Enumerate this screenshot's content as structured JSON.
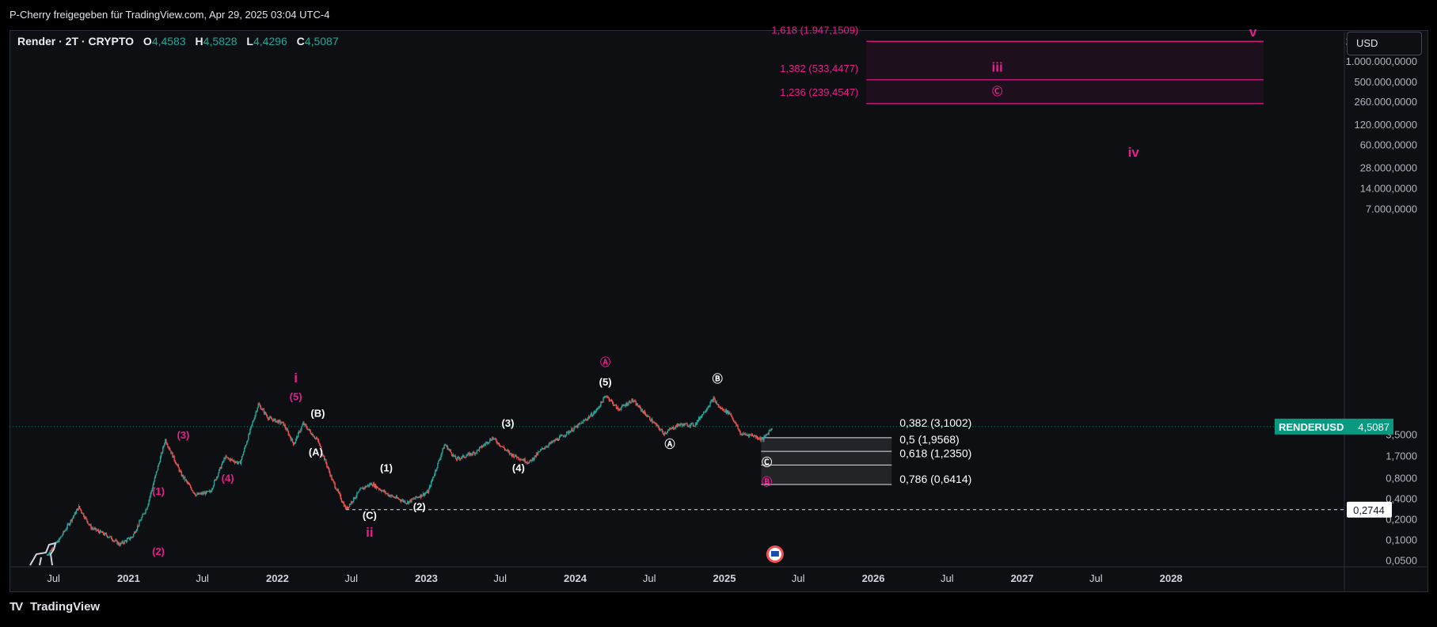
{
  "header": {
    "attribution": "P-Cherry freigegeben für TradingView.com, Apr 29, 2025 03:04 UTC-4"
  },
  "symbol_bar": {
    "name": "Render · 2T · CRYPTO",
    "open_label": "O",
    "open": "4,4583",
    "high_label": "H",
    "high": "4,5828",
    "low_label": "L",
    "low": "4,4296",
    "close_label": "C",
    "close": "4,5087"
  },
  "currency_button": "USD",
  "branding": "TradingView",
  "colors": {
    "background": "#0e0f13",
    "candle_up": "#26a69a",
    "candle_down": "#ef5350",
    "wave_magenta": "#e91e8c",
    "wave_white": "#ffffff",
    "price_tag": "#089981"
  },
  "chart_data": {
    "type": "candlestick",
    "symbol": "RENDERUSD",
    "interval": "2T",
    "y_scale": "log",
    "ylim": [
      0.04,
      2700000
    ],
    "y_tick_labels": [
      "2.000.000,0000",
      "1.000.000,0000",
      "500.000,0000",
      "260.000,0000",
      "120.000,0000",
      "60.000,0000",
      "28.000,0000",
      "14.000,0000",
      "7.000,0000",
      "3,5000",
      "1,7000",
      "0,8000",
      "0,4000",
      "0,2000",
      "0,1000",
      "0,0500"
    ],
    "y_ticks": [
      2000000,
      1000000,
      500000,
      260000,
      120000,
      60000,
      28000,
      14000,
      7000,
      3.5,
      1.7,
      0.8,
      0.4,
      0.2,
      0.1,
      0.05
    ],
    "x_tick_labels": [
      "Jul",
      "2021",
      "Jul",
      "2022",
      "Jul",
      "2023",
      "Jul",
      "2024",
      "Jul",
      "2025",
      "Jul",
      "2026",
      "Jul",
      "2027",
      "Jul",
      "2028"
    ],
    "x_ticks": [
      "2020-07-01",
      "2021-01-01",
      "2021-07-01",
      "2022-01-01",
      "2022-07-01",
      "2023-01-01",
      "2023-07-01",
      "2024-01-01",
      "2024-07-01",
      "2025-01-01",
      "2025-07-01",
      "2026-01-01",
      "2026-07-01",
      "2027-01-01",
      "2027-07-01",
      "2028-01-01"
    ],
    "xlim": [
      "2020-03-15",
      "2029-03-01"
    ],
    "price_path": [
      [
        "2020-06-15",
        0.06
      ],
      [
        "2020-07-15",
        0.1
      ],
      [
        "2020-09-01",
        0.3
      ],
      [
        "2020-10-01",
        0.15
      ],
      [
        "2020-11-15",
        0.11
      ],
      [
        "2020-12-10",
        0.085
      ],
      [
        "2021-01-10",
        0.11
      ],
      [
        "2021-02-15",
        0.3
      ],
      [
        "2021-04-01",
        2.9
      ],
      [
        "2021-05-10",
        0.9
      ],
      [
        "2021-06-15",
        0.45
      ],
      [
        "2021-07-20",
        0.5
      ],
      [
        "2021-08-25",
        1.6
      ],
      [
        "2021-10-01",
        1.3
      ],
      [
        "2021-11-15",
        9.6
      ],
      [
        "2021-12-10",
        6.0
      ],
      [
        "2022-01-15",
        5.0
      ],
      [
        "2022-02-10",
        2.5
      ],
      [
        "2022-03-05",
        5.0
      ],
      [
        "2022-04-10",
        2.8
      ],
      [
        "2022-05-15",
        0.75
      ],
      [
        "2022-06-18",
        0.28
      ],
      [
        "2022-07-25",
        0.55
      ],
      [
        "2022-08-20",
        0.66
      ],
      [
        "2022-10-01",
        0.45
      ],
      [
        "2022-11-15",
        0.35
      ],
      [
        "2022-12-10",
        0.42
      ],
      [
        "2023-01-05",
        0.5
      ],
      [
        "2023-02-15",
        2.5
      ],
      [
        "2023-03-15",
        1.5
      ],
      [
        "2023-05-01",
        1.9
      ],
      [
        "2023-06-12",
        3.1
      ],
      [
        "2023-07-25",
        1.8
      ],
      [
        "2023-09-10",
        1.35
      ],
      [
        "2023-10-15",
        2.2
      ],
      [
        "2023-11-20",
        3.0
      ],
      [
        "2024-01-05",
        4.5
      ],
      [
        "2024-02-20",
        7.5
      ],
      [
        "2024-03-17",
        13.0
      ],
      [
        "2024-04-15",
        8.0
      ],
      [
        "2024-05-20",
        11.0
      ],
      [
        "2024-06-20",
        7.0
      ],
      [
        "2024-08-05",
        3.6
      ],
      [
        "2024-09-10",
        4.8
      ],
      [
        "2024-10-20",
        4.8
      ],
      [
        "2024-12-05",
        11.5
      ],
      [
        "2024-12-20",
        8.5
      ],
      [
        "2025-01-15",
        7.0
      ],
      [
        "2025-02-10",
        3.5
      ],
      [
        "2025-03-10",
        3.4
      ],
      [
        "2025-04-05",
        2.9
      ],
      [
        "2025-04-29",
        4.5087
      ]
    ],
    "last_price": 4.5087,
    "last_price_label": "RENDERUSD",
    "last_price_value": "4,5087",
    "support_line": {
      "price": 0.2744,
      "label": "0,2744",
      "from": "2022-06-18"
    },
    "fib_retracements": [
      {
        "price": 3.1002,
        "label": "0,382 (3,1002)"
      },
      {
        "price": 1.9568,
        "label": "0,5 (1,9568)"
      },
      {
        "price": 1.235,
        "label": "0,618 (1,2350)"
      },
      {
        "price": 0.6414,
        "label": "0,786 (0,6414)"
      }
    ],
    "fib_zone_dates": [
      "2025-04-01",
      "2026-02-15"
    ],
    "fib_extensions": [
      {
        "price": 1947150.9,
        "label": "1,618 (1.947,1509)"
      },
      {
        "price": 533447.7,
        "label": "1,382 (533,4477)"
      },
      {
        "price": 239454.7,
        "label": "1,236 (239,4547)"
      }
    ],
    "extension_zone_dates": [
      "2025-12-15",
      "2028-08-15"
    ],
    "wave_labels": [
      {
        "text": "(1)",
        "date": "2021-03-15",
        "price": 0.45,
        "color": "magenta"
      },
      {
        "text": "(2)",
        "date": "2021-03-15",
        "price": 0.06,
        "color": "magenta"
      },
      {
        "text": "(3)",
        "date": "2021-05-15",
        "price": 3.0,
        "color": "magenta"
      },
      {
        "text": "(4)",
        "date": "2021-09-01",
        "price": 0.7,
        "color": "magenta"
      },
      {
        "text": "(5)",
        "date": "2022-02-15",
        "price": 11.0,
        "color": "magenta"
      },
      {
        "text": "i",
        "date": "2022-02-15",
        "price": 20.0,
        "color": "magenta"
      },
      {
        "text": "(A)",
        "date": "2022-04-05",
        "price": 1.7,
        "color": "white"
      },
      {
        "text": "(B)",
        "date": "2022-04-10",
        "price": 6.3,
        "color": "white"
      },
      {
        "text": "(C)",
        "date": "2022-08-15",
        "price": 0.2,
        "color": "white"
      },
      {
        "text": "ii",
        "date": "2022-08-15",
        "price": 0.11,
        "color": "magenta"
      },
      {
        "text": "(1)",
        "date": "2022-09-25",
        "price": 1.0,
        "color": "white"
      },
      {
        "text": "(2)",
        "date": "2022-12-15",
        "price": 0.27,
        "color": "white"
      },
      {
        "text": "(3)",
        "date": "2023-07-20",
        "price": 4.5,
        "color": "white"
      },
      {
        "text": "(4)",
        "date": "2023-08-15",
        "price": 1.0,
        "color": "white"
      },
      {
        "text": "(5)",
        "date": "2024-03-15",
        "price": 18.0,
        "color": "white"
      },
      {
        "text": "Ⓐ",
        "date": "2024-03-15",
        "price": 35.0,
        "color": "magenta"
      },
      {
        "text": "Ⓐ",
        "date": "2024-08-20",
        "price": 2.2,
        "color": "white"
      },
      {
        "text": "Ⓑ",
        "date": "2024-12-15",
        "price": 20.0,
        "color": "white"
      },
      {
        "text": "Ⓒ",
        "date": "2025-04-15",
        "price": 1.2,
        "color": "white"
      },
      {
        "text": "Ⓑ",
        "date": "2025-04-15",
        "price": 0.62,
        "color": "magenta"
      },
      {
        "text": "iii",
        "date": "2026-11-01",
        "price": 700000,
        "color": "magenta"
      },
      {
        "text": "Ⓒ",
        "date": "2026-11-01",
        "price": 320000,
        "color": "magenta"
      },
      {
        "text": "iv",
        "date": "2027-10-01",
        "price": 40000,
        "color": "magenta"
      },
      {
        "text": "v",
        "date": "2028-07-20",
        "price": 2300000,
        "color": "magenta"
      }
    ]
  }
}
